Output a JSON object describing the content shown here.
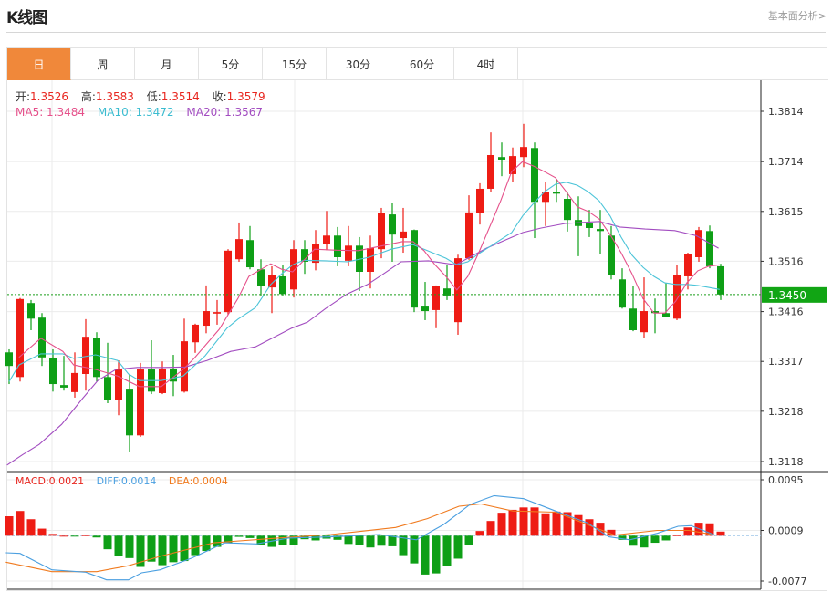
{
  "header": {
    "title": "K线图",
    "fundamental_link": "基本面分析>"
  },
  "tabs": [
    {
      "label": "日",
      "active": true
    },
    {
      "label": "周"
    },
    {
      "label": "月"
    },
    {
      "label": "5分"
    },
    {
      "label": "15分"
    },
    {
      "label": "30分"
    },
    {
      "label": "60分"
    },
    {
      "label": "4时"
    }
  ],
  "ohlc": {
    "open_label": "开:",
    "open": "1.3526",
    "high_label": "高:",
    "high": "1.3583",
    "low_label": "低:",
    "low": "1.3514",
    "close_label": "收:",
    "close": "1.3579"
  },
  "ma": {
    "ma5": "MA5: 1.3484",
    "ma10": "MA10: 1.3472",
    "ma20": "MA20: 1.3567"
  },
  "macd_info": {
    "macd": "MACD:0.0021",
    "diff": "DIFF:0.0014",
    "dea": "DEA:0.0004"
  },
  "colors": {
    "up": "#ee1c14",
    "down": "#0e9f16",
    "ma5": "#e5508a",
    "ma10": "#4cc4d8",
    "ma20": "#a24cc0",
    "diff": "#4a9fe0",
    "dea": "#f07a1e",
    "accent": "#f0883a"
  },
  "chart_data": [
    {
      "type": "candlestick",
      "price_ticks": [
        "1.3814",
        "1.3714",
        "1.3615",
        "1.3516",
        "1.3416",
        "1.3317",
        "1.3218",
        "1.3118"
      ],
      "ylim": [
        1.3118,
        1.3814
      ],
      "last_price": "1.3450",
      "grid": true,
      "candles": [
        [
          1.3335,
          1.3341,
          1.3272,
          1.3308
        ],
        [
          1.3286,
          1.3443,
          1.3277,
          1.3441
        ],
        [
          1.3433,
          1.3439,
          1.3379,
          1.3402
        ],
        [
          1.3404,
          1.3413,
          1.3308,
          1.3325
        ],
        [
          1.3323,
          1.3341,
          1.3257,
          1.3272
        ],
        [
          1.327,
          1.3328,
          1.3259,
          1.3265
        ],
        [
          1.3256,
          1.3335,
          1.3245,
          1.3294
        ],
        [
          1.3292,
          1.3401,
          1.3259,
          1.3366
        ],
        [
          1.3363,
          1.3375,
          1.3277,
          1.3286
        ],
        [
          1.3286,
          1.3354,
          1.3234,
          1.3241
        ],
        [
          1.3241,
          1.3319,
          1.321,
          1.3301
        ],
        [
          1.3261,
          1.3292,
          1.3138,
          1.317
        ],
        [
          1.317,
          1.3314,
          1.3167,
          1.3301
        ],
        [
          1.3301,
          1.3359,
          1.3252,
          1.3257
        ],
        [
          1.3254,
          1.3317,
          1.3252,
          1.3303
        ],
        [
          1.3303,
          1.333,
          1.3248,
          1.3277
        ],
        [
          1.3257,
          1.3402,
          1.3255,
          1.3357
        ],
        [
          1.3355,
          1.3392,
          1.3334,
          1.339
        ],
        [
          1.3388,
          1.3468,
          1.3373,
          1.3417
        ],
        [
          1.3412,
          1.3439,
          1.339,
          1.3415
        ],
        [
          1.3415,
          1.354,
          1.341,
          1.3537
        ],
        [
          1.352,
          1.3593,
          1.3515,
          1.356
        ],
        [
          1.3558,
          1.3586,
          1.35,
          1.3504
        ],
        [
          1.35,
          1.352,
          1.3448,
          1.3466
        ],
        [
          1.3464,
          1.3506,
          1.3413,
          1.3488
        ],
        [
          1.3486,
          1.3509,
          1.3448,
          1.3451
        ],
        [
          1.346,
          1.3558,
          1.3444,
          1.354
        ],
        [
          1.354,
          1.3558,
          1.3491,
          1.3515
        ],
        [
          1.3513,
          1.3578,
          1.3498,
          1.3551
        ],
        [
          1.3551,
          1.3616,
          1.3538,
          1.3567
        ],
        [
          1.3567,
          1.3584,
          1.3506,
          1.3524
        ],
        [
          1.3517,
          1.3586,
          1.3506,
          1.3547
        ],
        [
          1.3547,
          1.3564,
          1.3457,
          1.3495
        ],
        [
          1.3495,
          1.3567,
          1.3462,
          1.3542
        ],
        [
          1.354,
          1.3622,
          1.3522,
          1.3611
        ],
        [
          1.3609,
          1.3631,
          1.3515,
          1.3569
        ],
        [
          1.3562,
          1.3622,
          1.3533,
          1.3575
        ],
        [
          1.3578,
          1.3579,
          1.3415,
          1.3424
        ],
        [
          1.3426,
          1.3475,
          1.3399,
          1.3417
        ],
        [
          1.3419,
          1.3468,
          1.3383,
          1.3466
        ],
        [
          1.3462,
          1.3508,
          1.3439,
          1.3448
        ],
        [
          1.3395,
          1.3529,
          1.337,
          1.3522
        ],
        [
          1.3522,
          1.3647,
          1.3519,
          1.3613
        ],
        [
          1.3611,
          1.3671,
          1.3589,
          1.366
        ],
        [
          1.366,
          1.3772,
          1.3653,
          1.3727
        ],
        [
          1.3723,
          1.3752,
          1.3685,
          1.3718
        ],
        [
          1.3689,
          1.3742,
          1.3674,
          1.3725
        ],
        [
          1.3723,
          1.3789,
          1.3703,
          1.3743
        ],
        [
          1.3741,
          1.3752,
          1.3562,
          1.3634
        ],
        [
          1.3634,
          1.3674,
          1.3586,
          1.3653
        ],
        [
          1.3653,
          1.368,
          1.3634,
          1.3651
        ],
        [
          1.364,
          1.3654,
          1.3575,
          1.3598
        ],
        [
          1.3598,
          1.3645,
          1.3526,
          1.3586
        ],
        [
          1.3591,
          1.3618,
          1.3564,
          1.3582
        ],
        [
          1.358,
          1.3618,
          1.3531,
          1.3576
        ],
        [
          1.3567,
          1.3586,
          1.348,
          1.3488
        ],
        [
          1.348,
          1.3502,
          1.3422,
          1.3424
        ],
        [
          1.3422,
          1.3466,
          1.3377,
          1.3379
        ],
        [
          1.3375,
          1.3484,
          1.3363,
          1.3417
        ],
        [
          1.3417,
          1.3442,
          1.3373,
          1.3413
        ],
        [
          1.3413,
          1.3473,
          1.3405,
          1.3406
        ],
        [
          1.3402,
          1.3508,
          1.3399,
          1.3488
        ],
        [
          1.3486,
          1.3533,
          1.346,
          1.3531
        ],
        [
          1.3524,
          1.3584,
          1.3515,
          1.3578
        ],
        [
          1.3576,
          1.3587,
          1.3502,
          1.3506
        ],
        [
          1.3506,
          1.3511,
          1.3439,
          1.345
        ]
      ],
      "ma5": [
        [
          0.9,
          1.3325
        ],
        [
          2.9,
          1.3363
        ],
        [
          4.9,
          1.3337
        ],
        [
          5.9,
          1.331
        ],
        [
          7.9,
          1.3301
        ],
        [
          9.9,
          1.3288
        ],
        [
          11.9,
          1.3267
        ],
        [
          13.9,
          1.3267
        ],
        [
          15.9,
          1.3301
        ],
        [
          16.9,
          1.3323
        ],
        [
          19.2,
          1.3381
        ],
        [
          20.9,
          1.3442
        ],
        [
          21.9,
          1.3486
        ],
        [
          23.9,
          1.3511
        ],
        [
          24.9,
          1.35
        ],
        [
          25.9,
          1.3495
        ],
        [
          27.9,
          1.354
        ],
        [
          29.9,
          1.3538
        ],
        [
          31.9,
          1.3537
        ],
        [
          33.9,
          1.3546
        ],
        [
          35.9,
          1.3555
        ],
        [
          36.9,
          1.3555
        ],
        [
          37.9,
          1.3537
        ],
        [
          38.9,
          1.3509
        ],
        [
          39.9,
          1.3486
        ],
        [
          40.9,
          1.3459
        ],
        [
          41.9,
          1.3486
        ],
        [
          42.9,
          1.3533
        ],
        [
          44.2,
          1.36
        ],
        [
          44.9,
          1.3636
        ],
        [
          45.9,
          1.3694
        ],
        [
          46.9,
          1.3714
        ],
        [
          47.9,
          1.3705
        ],
        [
          48.9,
          1.3694
        ],
        [
          49.9,
          1.3682
        ],
        [
          50.9,
          1.3654
        ],
        [
          51.9,
          1.3624
        ],
        [
          52.9,
          1.3615
        ],
        [
          53.9,
          1.36
        ],
        [
          54.9,
          1.3569
        ],
        [
          55.9,
          1.3533
        ],
        [
          56.9,
          1.3491
        ],
        [
          57.9,
          1.3442
        ],
        [
          58.9,
          1.3413
        ],
        [
          59.9,
          1.3413
        ],
        [
          60.9,
          1.3437
        ],
        [
          61.9,
          1.3473
        ],
        [
          62.9,
          1.3497
        ],
        [
          63.9,
          1.3506
        ],
        [
          64.9,
          1.3509
        ]
      ],
      "ma10": [
        [
          0,
          1.3277
        ],
        [
          0.9,
          1.331
        ],
        [
          2.9,
          1.3332
        ],
        [
          4.9,
          1.3332
        ],
        [
          5.9,
          1.3323
        ],
        [
          7.9,
          1.333
        ],
        [
          9.9,
          1.3319
        ],
        [
          10.9,
          1.3292
        ],
        [
          11.9,
          1.3279
        ],
        [
          13.9,
          1.3279
        ],
        [
          15.9,
          1.3288
        ],
        [
          17.9,
          1.3328
        ],
        [
          19.9,
          1.3383
        ],
        [
          20.9,
          1.3401
        ],
        [
          22.5,
          1.3424
        ],
        [
          23.9,
          1.347
        ],
        [
          24.9,
          1.3491
        ],
        [
          25.9,
          1.3509
        ],
        [
          26.9,
          1.3518
        ],
        [
          28.9,
          1.3517
        ],
        [
          30.9,
          1.3515
        ],
        [
          32.9,
          1.3524
        ],
        [
          34.9,
          1.354
        ],
        [
          36.9,
          1.3549
        ],
        [
          37.9,
          1.354
        ],
        [
          39.9,
          1.3522
        ],
        [
          40.9,
          1.3509
        ],
        [
          41.9,
          1.3515
        ],
        [
          42.9,
          1.3531
        ],
        [
          44.2,
          1.3549
        ],
        [
          45.9,
          1.3573
        ],
        [
          46.9,
          1.3606
        ],
        [
          47.9,
          1.3631
        ],
        [
          48.9,
          1.3654
        ],
        [
          49.9,
          1.3669
        ],
        [
          50.9,
          1.3673
        ],
        [
          51.9,
          1.3667
        ],
        [
          52.9,
          1.3654
        ],
        [
          53.9,
          1.3636
        ],
        [
          54.9,
          1.3606
        ],
        [
          55.9,
          1.3564
        ],
        [
          56.9,
          1.3528
        ],
        [
          57.9,
          1.3504
        ],
        [
          58.9,
          1.3486
        ],
        [
          59.9,
          1.3473
        ],
        [
          60.9,
          1.347
        ],
        [
          61.9,
          1.347
        ],
        [
          62.9,
          1.3468
        ],
        [
          63.9,
          1.3464
        ],
        [
          64.9,
          1.346
        ]
      ],
      "ma20": [
        [
          -0.2,
          1.3111
        ],
        [
          1.25,
          1.3132
        ],
        [
          2.75,
          1.3152
        ],
        [
          4.8,
          1.3192
        ],
        [
          6.7,
          1.3243
        ],
        [
          8.1,
          1.3279
        ],
        [
          9.75,
          1.3301
        ],
        [
          11.7,
          1.3305
        ],
        [
          14.2,
          1.3305
        ],
        [
          16.1,
          1.3306
        ],
        [
          18.1,
          1.3319
        ],
        [
          20.25,
          1.3337
        ],
        [
          22.5,
          1.3346
        ],
        [
          23.3,
          1.3355
        ],
        [
          25.8,
          1.3383
        ],
        [
          27.25,
          1.3395
        ],
        [
          28.9,
          1.3422
        ],
        [
          30.8,
          1.345
        ],
        [
          32.75,
          1.347
        ],
        [
          34.2,
          1.3491
        ],
        [
          35.8,
          1.3515
        ],
        [
          38.3,
          1.3517
        ],
        [
          40.8,
          1.3509
        ],
        [
          41.9,
          1.3522
        ],
        [
          43.6,
          1.3542
        ],
        [
          45,
          1.3555
        ],
        [
          46.9,
          1.3573
        ],
        [
          48.6,
          1.3582
        ],
        [
          50.8,
          1.3591
        ],
        [
          53.9,
          1.3595
        ],
        [
          55.8,
          1.3584
        ],
        [
          58.1,
          1.358
        ],
        [
          60.8,
          1.3577
        ],
        [
          62.75,
          1.3567
        ],
        [
          64.8,
          1.3542
        ]
      ]
    },
    {
      "type": "bar",
      "name": "MACD",
      "ticks": [
        "0.0095",
        "0.0009",
        "-0.0077"
      ],
      "ylim": [
        -0.0077,
        0.0095
      ],
      "histogram": [
        0.0033,
        0.0042,
        0.0028,
        0.0012,
        0.0003,
        0.0,
        -0.0001,
        0.0001,
        -0.0003,
        -0.0023,
        -0.0034,
        -0.0038,
        -0.0053,
        -0.0044,
        -0.005,
        -0.0045,
        -0.0043,
        -0.0033,
        -0.0026,
        -0.0019,
        -0.0012,
        -0.0002,
        -0.0004,
        -0.0016,
        -0.0019,
        -0.0016,
        -0.0016,
        -0.0006,
        -0.0008,
        -0.0005,
        -0.0007,
        -0.0014,
        -0.0016,
        -0.002,
        -0.0017,
        -0.0018,
        -0.0033,
        -0.0047,
        -0.0066,
        -0.0064,
        -0.0052,
        -0.0039,
        -0.0016,
        0.0008,
        0.0025,
        0.0039,
        0.0044,
        0.0048,
        0.0048,
        0.0038,
        0.0041,
        0.004,
        0.0035,
        0.0028,
        0.0022,
        0.001,
        -0.0007,
        -0.0017,
        -0.002,
        -0.0012,
        -0.0008,
        0.0001,
        0.0014,
        0.0022,
        0.0021,
        0.0007
      ],
      "diff": [
        [
          -0.3,
          -0.0029
        ],
        [
          1,
          -0.003
        ],
        [
          3.9,
          -0.0058
        ],
        [
          7,
          -0.0062
        ],
        [
          8.9,
          -0.0075
        ],
        [
          10.9,
          -0.0075
        ],
        [
          12.1,
          -0.0063
        ],
        [
          13.8,
          -0.0058
        ],
        [
          16.7,
          -0.0038
        ],
        [
          19.7,
          -0.0012
        ],
        [
          22.6,
          -0.0014
        ],
        [
          25.5,
          -0.0004
        ],
        [
          29.4,
          -0.0002
        ],
        [
          33.8,
          0.0002
        ],
        [
          37.2,
          -0.0007
        ],
        [
          39.7,
          0.0019
        ],
        [
          42.1,
          0.0053
        ],
        [
          44.3,
          0.0068
        ],
        [
          47,
          0.0063
        ],
        [
          49.9,
          0.0042
        ],
        [
          52.8,
          0.0022
        ],
        [
          54.8,
          -0.0002
        ],
        [
          56.7,
          -0.0007
        ],
        [
          59.2,
          0.0004
        ],
        [
          61.1,
          0.0016
        ],
        [
          62.3,
          0.0017
        ],
        [
          64.5,
          0.0001
        ]
      ],
      "dea": [
        [
          -0.3,
          -0.0045
        ],
        [
          3.9,
          -0.0061
        ],
        [
          8,
          -0.0061
        ],
        [
          10.9,
          -0.0051
        ],
        [
          13.8,
          -0.0035
        ],
        [
          18.7,
          -0.0012
        ],
        [
          24.5,
          -0.0004
        ],
        [
          29.4,
          0.0002
        ],
        [
          35.3,
          0.0014
        ],
        [
          38.2,
          0.0029
        ],
        [
          41.1,
          0.005
        ],
        [
          43.1,
          0.0054
        ],
        [
          46,
          0.0042
        ],
        [
          49.9,
          0.004
        ],
        [
          52.8,
          0.0019
        ],
        [
          55.3,
          0.0001
        ],
        [
          59.2,
          0.0009
        ],
        [
          62.1,
          0.0009
        ],
        [
          64.5,
          0.0001
        ]
      ]
    }
  ]
}
